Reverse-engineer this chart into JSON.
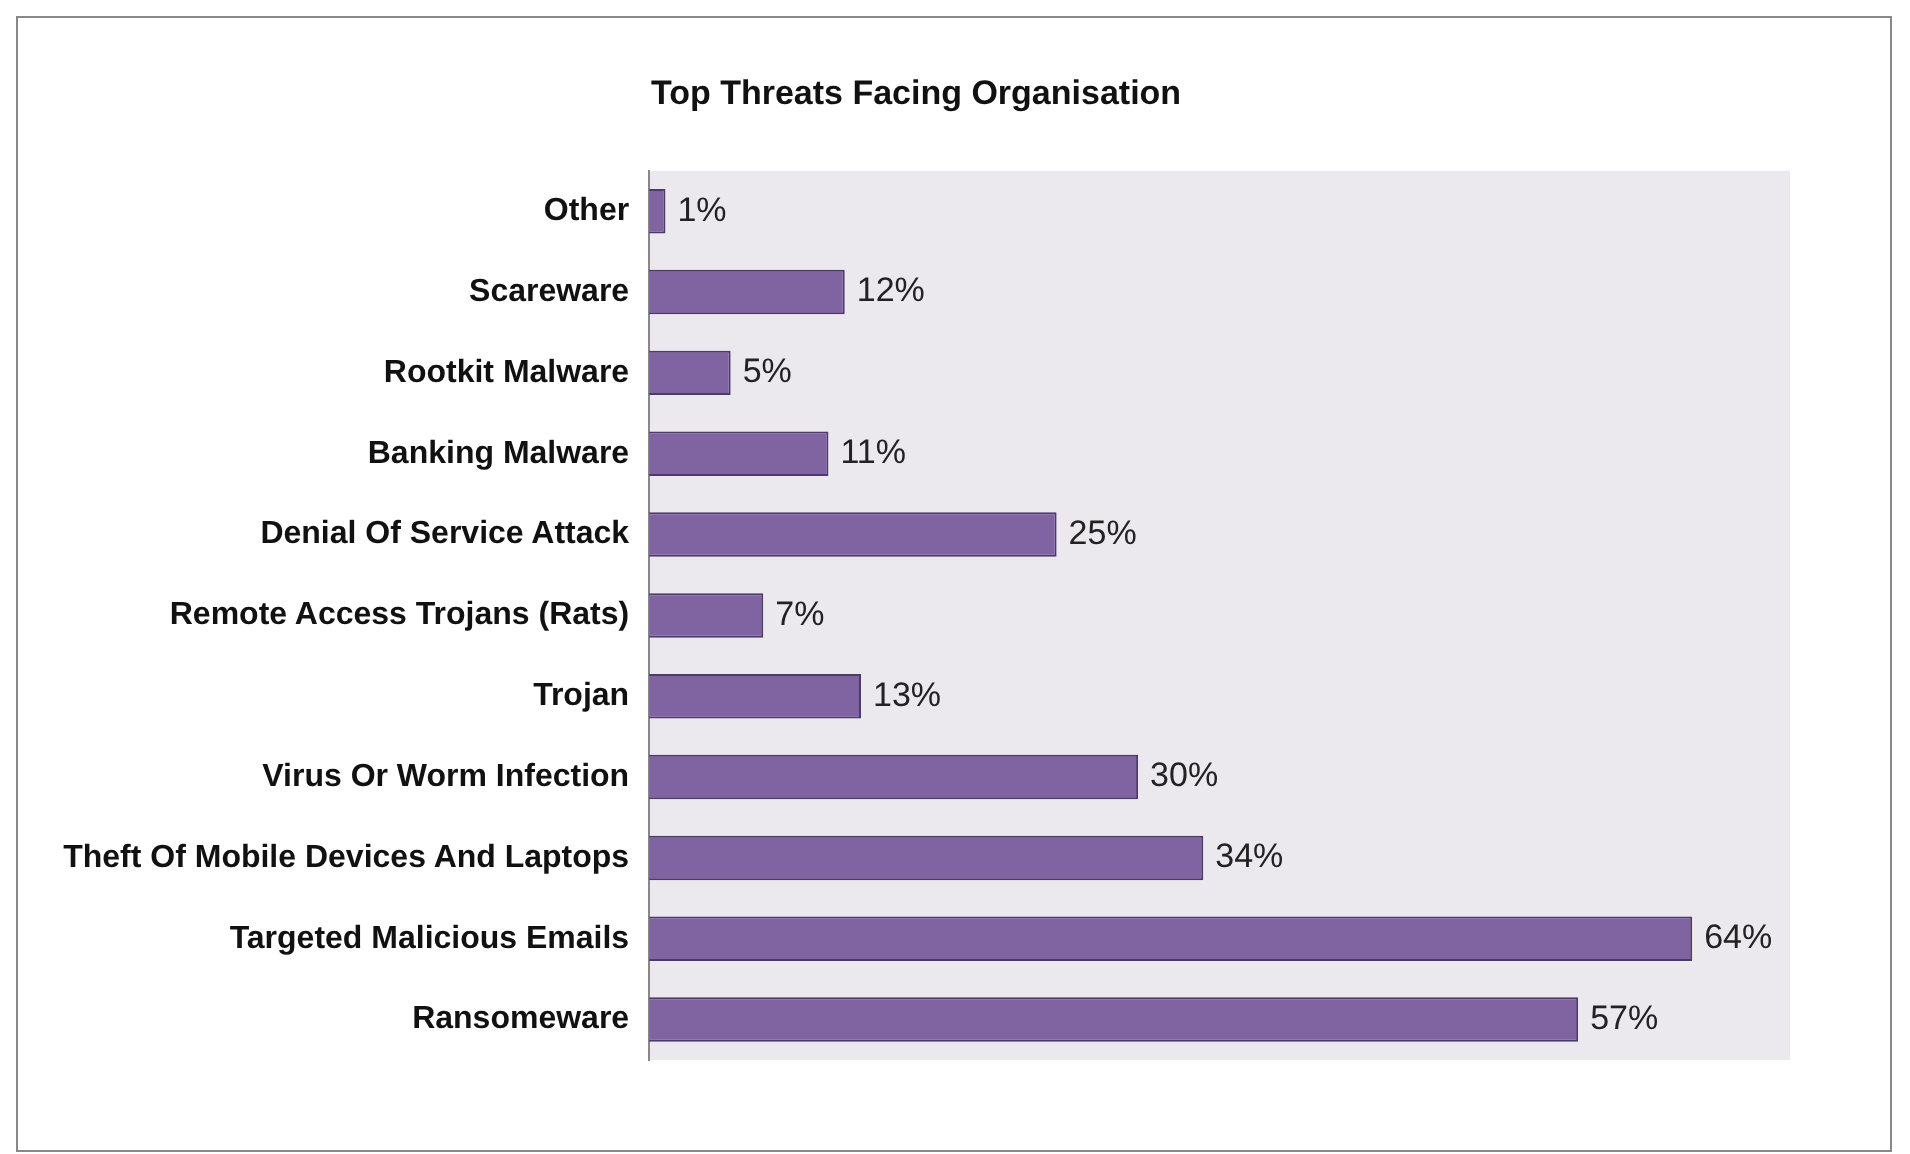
{
  "chart_data": {
    "type": "bar",
    "orientation": "horizontal",
    "title": "Top Threats Facing Organisation",
    "categories": [
      "Other",
      "Scareware",
      "Rootkit Malware",
      "Banking Malware",
      "Denial Of Service Attack",
      "Remote Access Trojans (Rats)",
      "Trojan",
      "Virus Or Worm Infection",
      "Theft Of Mobile Devices And Laptops",
      "Targeted Malicious Emails",
      "Ransomeware"
    ],
    "values": [
      1,
      12,
      5,
      11,
      25,
      7,
      13,
      30,
      34,
      64,
      57
    ],
    "value_labels": [
      "1%",
      "12%",
      "5%",
      "11%",
      "25%",
      "7%",
      "13%",
      "30%",
      "34%",
      "64%",
      "57%"
    ],
    "color": "#8064a2",
    "grid": false,
    "legend": false,
    "tick_labels": "y"
  }
}
